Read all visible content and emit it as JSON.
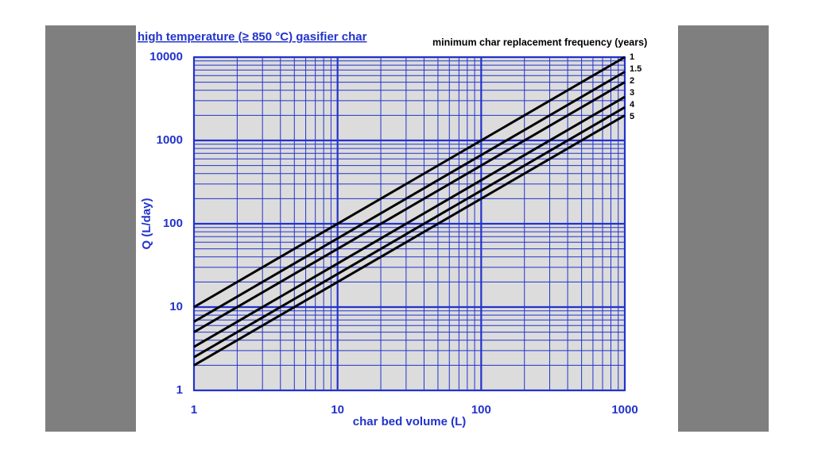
{
  "chart_data": {
    "type": "line",
    "title": "high temperature (≥ 850 °C) gasifier char",
    "xlabel": "char bed volume (L)",
    "ylabel": "Q (L/day)",
    "legend_title": "minimum char replacement frequency (years)",
    "log_x": true,
    "log_y": true,
    "grid": true,
    "xlim": [
      1,
      1000
    ],
    "ylim": [
      1,
      10000
    ],
    "xticks": [
      1,
      10,
      100,
      1000
    ],
    "yticks": [
      1,
      10,
      100,
      1000,
      10000
    ],
    "xminor": [
      2,
      3,
      4,
      5,
      6,
      7,
      8,
      9,
      20,
      30,
      40,
      50,
      60,
      70,
      80,
      90,
      200,
      300,
      400,
      500,
      600,
      700,
      800,
      900
    ],
    "yminor": [
      2,
      3,
      4,
      5,
      6,
      7,
      8,
      9,
      20,
      30,
      40,
      50,
      60,
      70,
      80,
      90,
      200,
      300,
      400,
      500,
      600,
      700,
      800,
      900,
      2000,
      3000,
      4000,
      5000,
      6000,
      7000,
      8000,
      9000
    ],
    "x": [
      1,
      1000
    ],
    "series": [
      {
        "name": "1",
        "color": "#000000",
        "values": [
          10,
          10000
        ]
      },
      {
        "name": "1.5",
        "color": "#000000",
        "values": [
          6.67,
          6667
        ]
      },
      {
        "name": "2",
        "color": "#000000",
        "values": [
          5,
          5000
        ]
      },
      {
        "name": "3",
        "color": "#000000",
        "values": [
          3.33,
          3333
        ]
      },
      {
        "name": "4",
        "color": "#000000",
        "values": [
          2.5,
          2500
        ]
      },
      {
        "name": "5",
        "color": "#000000",
        "values": [
          2,
          2000
        ]
      }
    ]
  }
}
